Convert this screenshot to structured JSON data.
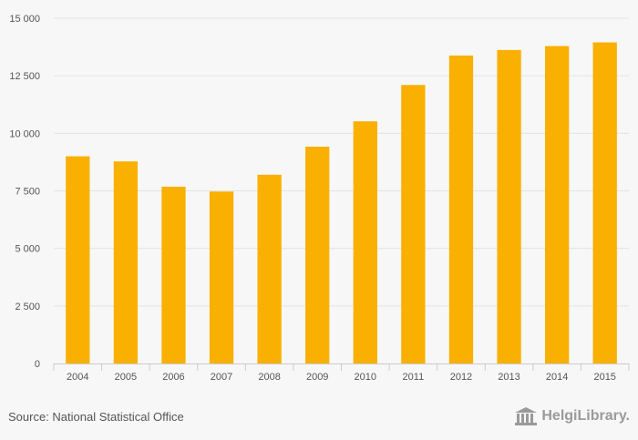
{
  "chart_data": {
    "type": "bar",
    "categories": [
      "2004",
      "2005",
      "2006",
      "2007",
      "2008",
      "2009",
      "2010",
      "2011",
      "2012",
      "2013",
      "2014",
      "2015"
    ],
    "values": [
      9000,
      8780,
      7680,
      7470,
      8200,
      9420,
      10520,
      12100,
      13380,
      13620,
      13790,
      13950
    ],
    "ylim": [
      0,
      15000
    ],
    "yticks": [
      0,
      2500,
      5000,
      7500,
      10000,
      12500,
      15000
    ],
    "ytick_labels": [
      "0",
      "2 500",
      "5 000",
      "7 500",
      "10 000",
      "12 500",
      "15 000"
    ],
    "title": "",
    "xlabel": "",
    "ylabel": "",
    "grid": true,
    "legend": "none"
  },
  "colors": {
    "bar": "#f9b000",
    "grid": "#e3e3e3",
    "axis": "#cccccc",
    "background": "#f7f7f7"
  },
  "footer": {
    "source": "Source: National Statistical Office",
    "brand": "HelgiLibrary.",
    "brand_icon": "library-building-icon"
  }
}
